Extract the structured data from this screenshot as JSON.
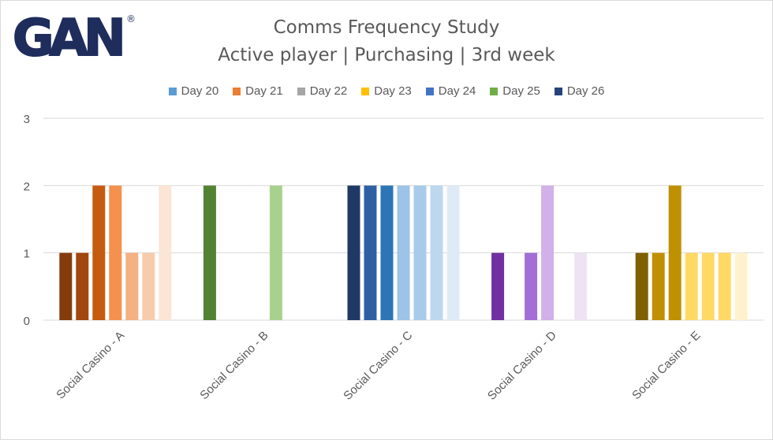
{
  "logo": {
    "text": "GAN",
    "registered": "®",
    "color": "#1f2d5c"
  },
  "chart_data": {
    "type": "bar",
    "title": "Comms Frequency Study",
    "subtitle": "Active player | Purchasing | 3rd week",
    "categories": [
      "Social Casino - A",
      "Social Casino - B",
      "Social Casino - C",
      "Social Casino - D",
      "Social Casino - E"
    ],
    "series": [
      {
        "name": "Day 20",
        "values": [
          1,
          2,
          2,
          1,
          1
        ]
      },
      {
        "name": "Day 21",
        "values": [
          1,
          0,
          2,
          0,
          1
        ]
      },
      {
        "name": "Day 22",
        "values": [
          2,
          0,
          2,
          1,
          2
        ]
      },
      {
        "name": "Day 23",
        "values": [
          2,
          0,
          2,
          2,
          1
        ]
      },
      {
        "name": "Day 24",
        "values": [
          1,
          2,
          2,
          0,
          1
        ]
      },
      {
        "name": "Day 25",
        "values": [
          1,
          0,
          2,
          1,
          1
        ]
      },
      {
        "name": "Day 26",
        "values": [
          2,
          0,
          2,
          0,
          1
        ]
      }
    ],
    "legend_colors": [
      "#5b9bd5",
      "#ed7d31",
      "#a5a5a5",
      "#ffc000",
      "#4472c4",
      "#70ad47",
      "#264478"
    ],
    "bar_colors": [
      [
        "#843c0c",
        "#a14710",
        "#c55a11",
        "#f4914e",
        "#f4b183",
        "#f8cbad",
        "#fbe5d6"
      ],
      [
        "#548235",
        "#a9d18e",
        "#a9d18e",
        "#a9d18e",
        "#a9d18e",
        "#a9d18e",
        "#a9d18e"
      ],
      [
        "#203864",
        "#2e5fa3",
        "#2e75b6",
        "#9dc3e6",
        "#a9cbea",
        "#bdd7ee",
        "#deebf7"
      ],
      [
        "#7030a0",
        "#7030a0",
        "#a36fd6",
        "#d1b1e8",
        "#d1b1e8",
        "#ede3f5",
        "#ede3f5"
      ],
      [
        "#7f6000",
        "#bf9000",
        "#bf9000",
        "#ffd966",
        "#ffd966",
        "#ffd966",
        "#fff2cc"
      ]
    ],
    "ylim": [
      0,
      3
    ],
    "yticks": [
      "0",
      "1",
      "2",
      "3"
    ],
    "grid": true,
    "legend_position": "top"
  }
}
